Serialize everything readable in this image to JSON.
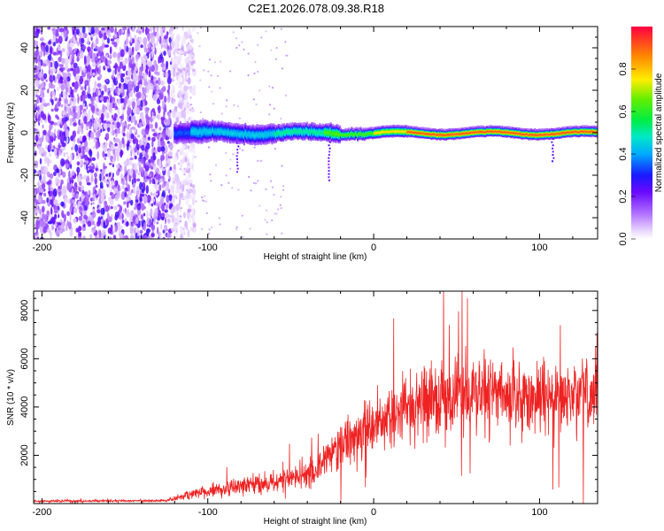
{
  "title": "C2E1.2026.078.09.38.R18",
  "chart_data": [
    {
      "type": "heatmap",
      "name": "spectrogram",
      "xlabel": "Height of straight line (km)",
      "ylabel": "Frequency (Hz)",
      "xlim": [
        -205,
        135
      ],
      "ylim": [
        -50,
        50
      ],
      "xticks": [
        -200,
        -100,
        0,
        100
      ],
      "yticks": [
        -40,
        -20,
        0,
        20,
        40
      ],
      "colorbar": {
        "label": "Normalized spectral amplitude",
        "range": [
          0.0,
          1.0
        ],
        "ticks": [
          0.0,
          0.2,
          0.4,
          0.6,
          0.8
        ]
      },
      "noise_region_end_km": -122,
      "carrier_frequency_hz": 0
    },
    {
      "type": "line",
      "name": "snr",
      "xlabel": "Height of straight line (km)",
      "ylabel": "SNR (10 * v/v)",
      "xlim": [
        -205,
        135
      ],
      "ylim": [
        0,
        8800
      ],
      "xticks": [
        -200,
        -100,
        0,
        100
      ],
      "yticks": [
        2000,
        4000,
        6000,
        8000
      ],
      "color": "#ee2222",
      "envelope": {
        "x": [
          -205,
          -125,
          -110,
          -80,
          -60,
          -35,
          -25,
          0,
          20,
          30,
          50,
          70,
          100,
          135
        ],
        "mean": [
          100,
          120,
          400,
          700,
          900,
          1300,
          2200,
          3300,
          4000,
          4300,
          4500,
          4600,
          4400,
          4400
        ],
        "spread": [
          60,
          70,
          350,
          550,
          650,
          900,
          1400,
          1700,
          2200,
          2400,
          2400,
          2300,
          2200,
          2200
        ]
      }
    }
  ]
}
